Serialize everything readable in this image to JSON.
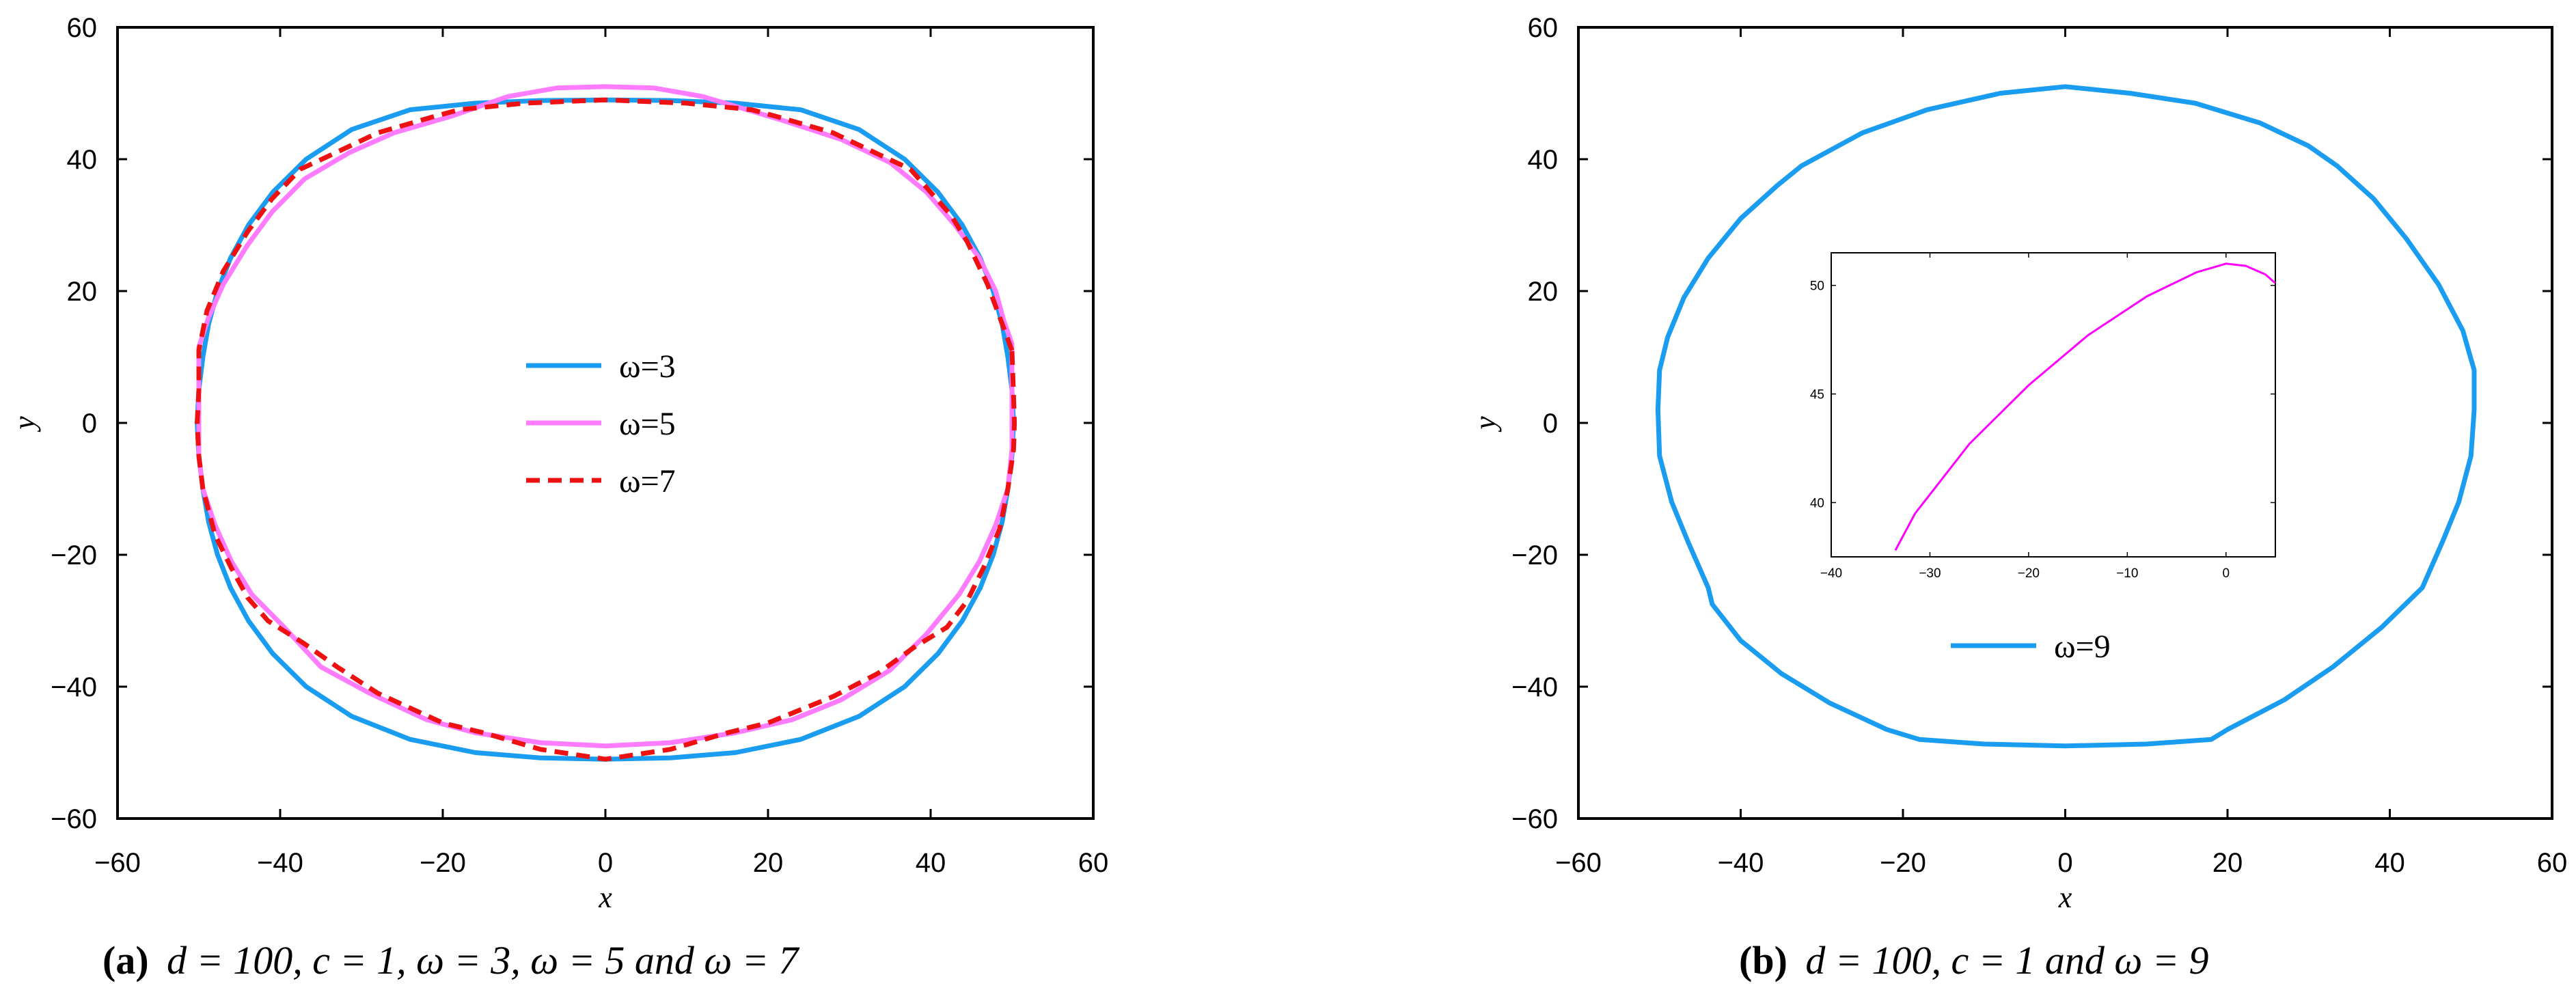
{
  "chart_data": [
    {
      "type": "line",
      "panel": "a",
      "xlabel": "x",
      "ylabel": "y",
      "xlim": [
        -60,
        60
      ],
      "ylim": [
        -60,
        60
      ],
      "xticks": [
        -60,
        -40,
        -20,
        0,
        20,
        40,
        60
      ],
      "yticks": [
        -60,
        -40,
        -20,
        0,
        20,
        40,
        60
      ],
      "legend_position": "center",
      "caption": {
        "label": "(a)",
        "text": "d = 100, c = 1, ω = 3, ω = 5 and   ω = 7"
      },
      "series": [
        {
          "name": "ω=3",
          "color": "#1a9cf0",
          "style": "solid",
          "points": [
            [
              49.5,
              10
            ],
            [
              48.8,
              15
            ],
            [
              47.7,
              20
            ],
            [
              46.1,
              25
            ],
            [
              43.9,
              30
            ],
            [
              40.9,
              35
            ],
            [
              36.8,
              40
            ],
            [
              31.2,
              44.5
            ],
            [
              24,
              47.5
            ],
            [
              16,
              48.5
            ],
            [
              8,
              48.9
            ],
            [
              0,
              49
            ],
            [
              -8,
              48.9
            ],
            [
              -16,
              48.5
            ],
            [
              -24,
              47.5
            ],
            [
              -31.2,
              44.5
            ],
            [
              -36.8,
              40
            ],
            [
              -40.9,
              35
            ],
            [
              -43.9,
              30
            ],
            [
              -46.1,
              25
            ],
            [
              -47.7,
              20
            ],
            [
              -48.8,
              15
            ],
            [
              -49.5,
              10
            ],
            [
              -50,
              5
            ],
            [
              -50.2,
              0
            ],
            [
              -50,
              -5
            ],
            [
              -49.5,
              -10
            ],
            [
              -48.8,
              -15
            ],
            [
              -47.7,
              -20
            ],
            [
              -46.1,
              -25
            ],
            [
              -43.9,
              -30
            ],
            [
              -40.9,
              -35
            ],
            [
              -36.8,
              -40
            ],
            [
              -31.2,
              -44.5
            ],
            [
              -24,
              -48
            ],
            [
              -16,
              -50
            ],
            [
              -8,
              -50.8
            ],
            [
              0,
              -51
            ],
            [
              8,
              -50.8
            ],
            [
              16,
              -50
            ],
            [
              24,
              -48
            ],
            [
              31.2,
              -44.5
            ],
            [
              36.8,
              -40
            ],
            [
              40.9,
              -35
            ],
            [
              43.9,
              -30
            ],
            [
              46.1,
              -25
            ],
            [
              47.7,
              -20
            ],
            [
              48.8,
              -15
            ],
            [
              49.5,
              -10
            ],
            [
              50,
              -5
            ],
            [
              50.2,
              0
            ],
            [
              50,
              5
            ],
            [
              49.5,
              10
            ]
          ]
        },
        {
          "name": "ω=5",
          "color": "#ff7bff",
          "style": "solid",
          "points": [
            [
              50,
              12
            ],
            [
              49,
              15.5
            ],
            [
              48,
              20
            ],
            [
              46,
              25
            ],
            [
              43,
              30
            ],
            [
              39.5,
              35
            ],
            [
              35,
              39.5
            ],
            [
              29,
              43
            ],
            [
              21.5,
              46
            ],
            [
              12,
              49.5
            ],
            [
              6,
              50.8
            ],
            [
              0,
              51
            ],
            [
              -6,
              50.8
            ],
            [
              -12,
              49.5
            ],
            [
              -19,
              46.5
            ],
            [
              -26,
              44
            ],
            [
              -31.5,
              41
            ],
            [
              -37,
              37
            ],
            [
              -41,
              32
            ],
            [
              -44,
              27
            ],
            [
              -47,
              21
            ],
            [
              -48.8,
              16
            ],
            [
              -50,
              11.5
            ],
            [
              -50,
              5
            ],
            [
              -50,
              0
            ],
            [
              -50,
              -5
            ],
            [
              -49.5,
              -10
            ],
            [
              -48,
              -15.5
            ],
            [
              -46,
              -21
            ],
            [
              -43.5,
              -26
            ],
            [
              -39.5,
              -31
            ],
            [
              -35,
              -37
            ],
            [
              -29,
              -41
            ],
            [
              -22,
              -45
            ],
            [
              -16,
              -47
            ],
            [
              -8,
              -48.5
            ],
            [
              0,
              -49
            ],
            [
              8,
              -48.5
            ],
            [
              16,
              -47
            ],
            [
              23,
              -45
            ],
            [
              29,
              -42
            ],
            [
              35,
              -37.5
            ],
            [
              39.5,
              -32
            ],
            [
              43.5,
              -26
            ],
            [
              46,
              -21
            ],
            [
              48,
              -15.5
            ],
            [
              49.5,
              -10
            ],
            [
              50,
              -4
            ],
            [
              50,
              2
            ],
            [
              50,
              8
            ],
            [
              50,
              12
            ]
          ]
        },
        {
          "name": "ω=7",
          "color": "#ee1111",
          "style": "dashed",
          "points": [
            [
              50,
              11
            ],
            [
              48.5,
              16
            ],
            [
              47,
              21
            ],
            [
              44.5,
              27.5
            ],
            [
              42.5,
              31.5
            ],
            [
              40,
              35
            ],
            [
              37.5,
              38.5
            ],
            [
              34,
              40.5
            ],
            [
              28,
              44
            ],
            [
              21,
              46.5
            ],
            [
              18,
              47.5
            ],
            [
              10,
              48.5
            ],
            [
              0,
              49
            ],
            [
              -10,
              48.5
            ],
            [
              -18,
              47.5
            ],
            [
              -21,
              46.5
            ],
            [
              -28,
              44
            ],
            [
              -34,
              40.5
            ],
            [
              -37.5,
              38.5
            ],
            [
              -41,
              34
            ],
            [
              -44,
              29
            ],
            [
              -47,
              23
            ],
            [
              -49,
              17
            ],
            [
              -50,
              11
            ],
            [
              -50,
              5
            ],
            [
              -50.2,
              0
            ],
            [
              -50,
              -5
            ],
            [
              -49.5,
              -10
            ],
            [
              -48,
              -17
            ],
            [
              -46,
              -22
            ],
            [
              -44,
              -26.5
            ],
            [
              -41.5,
              -30
            ],
            [
              -37,
              -33.5
            ],
            [
              -33,
              -37
            ],
            [
              -28,
              -41
            ],
            [
              -20,
              -45.5
            ],
            [
              -15,
              -47
            ],
            [
              -8,
              -49.5
            ],
            [
              0,
              -51
            ],
            [
              8,
              -49.5
            ],
            [
              15,
              -47
            ],
            [
              20,
              -45.5
            ],
            [
              28,
              -41.5
            ],
            [
              33.5,
              -38
            ],
            [
              38,
              -34
            ],
            [
              42,
              -31
            ],
            [
              44.5,
              -27
            ],
            [
              46.5,
              -22
            ],
            [
              48.5,
              -16
            ],
            [
              49.5,
              -10
            ],
            [
              50.2,
              -4
            ],
            [
              50.3,
              0
            ],
            [
              50.2,
              4
            ],
            [
              50,
              11
            ]
          ]
        }
      ]
    },
    {
      "type": "line",
      "panel": "b",
      "xlabel": "x",
      "ylabel": "y",
      "xlim": [
        -60,
        60
      ],
      "ylim": [
        -60,
        60
      ],
      "xticks": [
        -60,
        -40,
        -20,
        0,
        20,
        40,
        60
      ],
      "yticks": [
        -60,
        -40,
        -20,
        0,
        20,
        40,
        60
      ],
      "legend_position": "center-bottom",
      "caption": {
        "label": "(b)",
        "text": "d = 100, c = 1 and ω = 9"
      },
      "series": [
        {
          "name": "ω=9",
          "color": "#1a9cf0",
          "style": "solid",
          "points": [
            [
              0,
              51
            ],
            [
              8,
              50
            ],
            [
              16,
              48.5
            ],
            [
              24,
              45.5
            ],
            [
              30,
              42
            ],
            [
              33.5,
              39
            ],
            [
              38,
              34
            ],
            [
              42,
              28
            ],
            [
              46,
              21
            ],
            [
              49,
              14
            ],
            [
              50.4,
              8
            ],
            [
              50.4,
              2
            ],
            [
              50,
              -5
            ],
            [
              48.5,
              -12
            ],
            [
              46.5,
              -18
            ],
            [
              44,
              -25
            ],
            [
              39,
              -31
            ],
            [
              33,
              -37
            ],
            [
              27,
              -42
            ],
            [
              20,
              -46.5
            ],
            [
              18,
              -48
            ],
            [
              10,
              -48.7
            ],
            [
              0,
              -49
            ],
            [
              -10,
              -48.7
            ],
            [
              -18,
              -48
            ],
            [
              -22,
              -46.5
            ],
            [
              -29,
              -42.5
            ],
            [
              -35,
              -38
            ],
            [
              -40,
              -33
            ],
            [
              -43.5,
              -27.5
            ],
            [
              -44,
              -25
            ],
            [
              -46.5,
              -18
            ],
            [
              -48.5,
              -12
            ],
            [
              -50,
              -5
            ],
            [
              -50.2,
              2
            ],
            [
              -50,
              8
            ],
            [
              -49,
              13
            ],
            [
              -47,
              19
            ],
            [
              -44,
              25
            ],
            [
              -40,
              31
            ],
            [
              -35.5,
              36
            ],
            [
              -32.5,
              39
            ],
            [
              -25,
              44
            ],
            [
              -17,
              47.5
            ],
            [
              -8,
              50
            ],
            [
              0,
              51
            ]
          ]
        }
      ],
      "inset": {
        "xlim": [
          -40,
          5
        ],
        "ylim": [
          37.5,
          51.5
        ],
        "xticks": [
          -40,
          -30,
          -20,
          -10,
          0
        ],
        "yticks": [
          40,
          45,
          50
        ],
        "color": "#ff00ff",
        "points": [
          [
            -33.5,
            37.8
          ],
          [
            -31.5,
            39.5
          ],
          [
            -26,
            42.7
          ],
          [
            -20,
            45.4
          ],
          [
            -14,
            47.7
          ],
          [
            -8,
            49.5
          ],
          [
            -3,
            50.6
          ],
          [
            0,
            51
          ],
          [
            2,
            50.9
          ],
          [
            4,
            50.5
          ],
          [
            5,
            50.1
          ]
        ]
      }
    }
  ]
}
